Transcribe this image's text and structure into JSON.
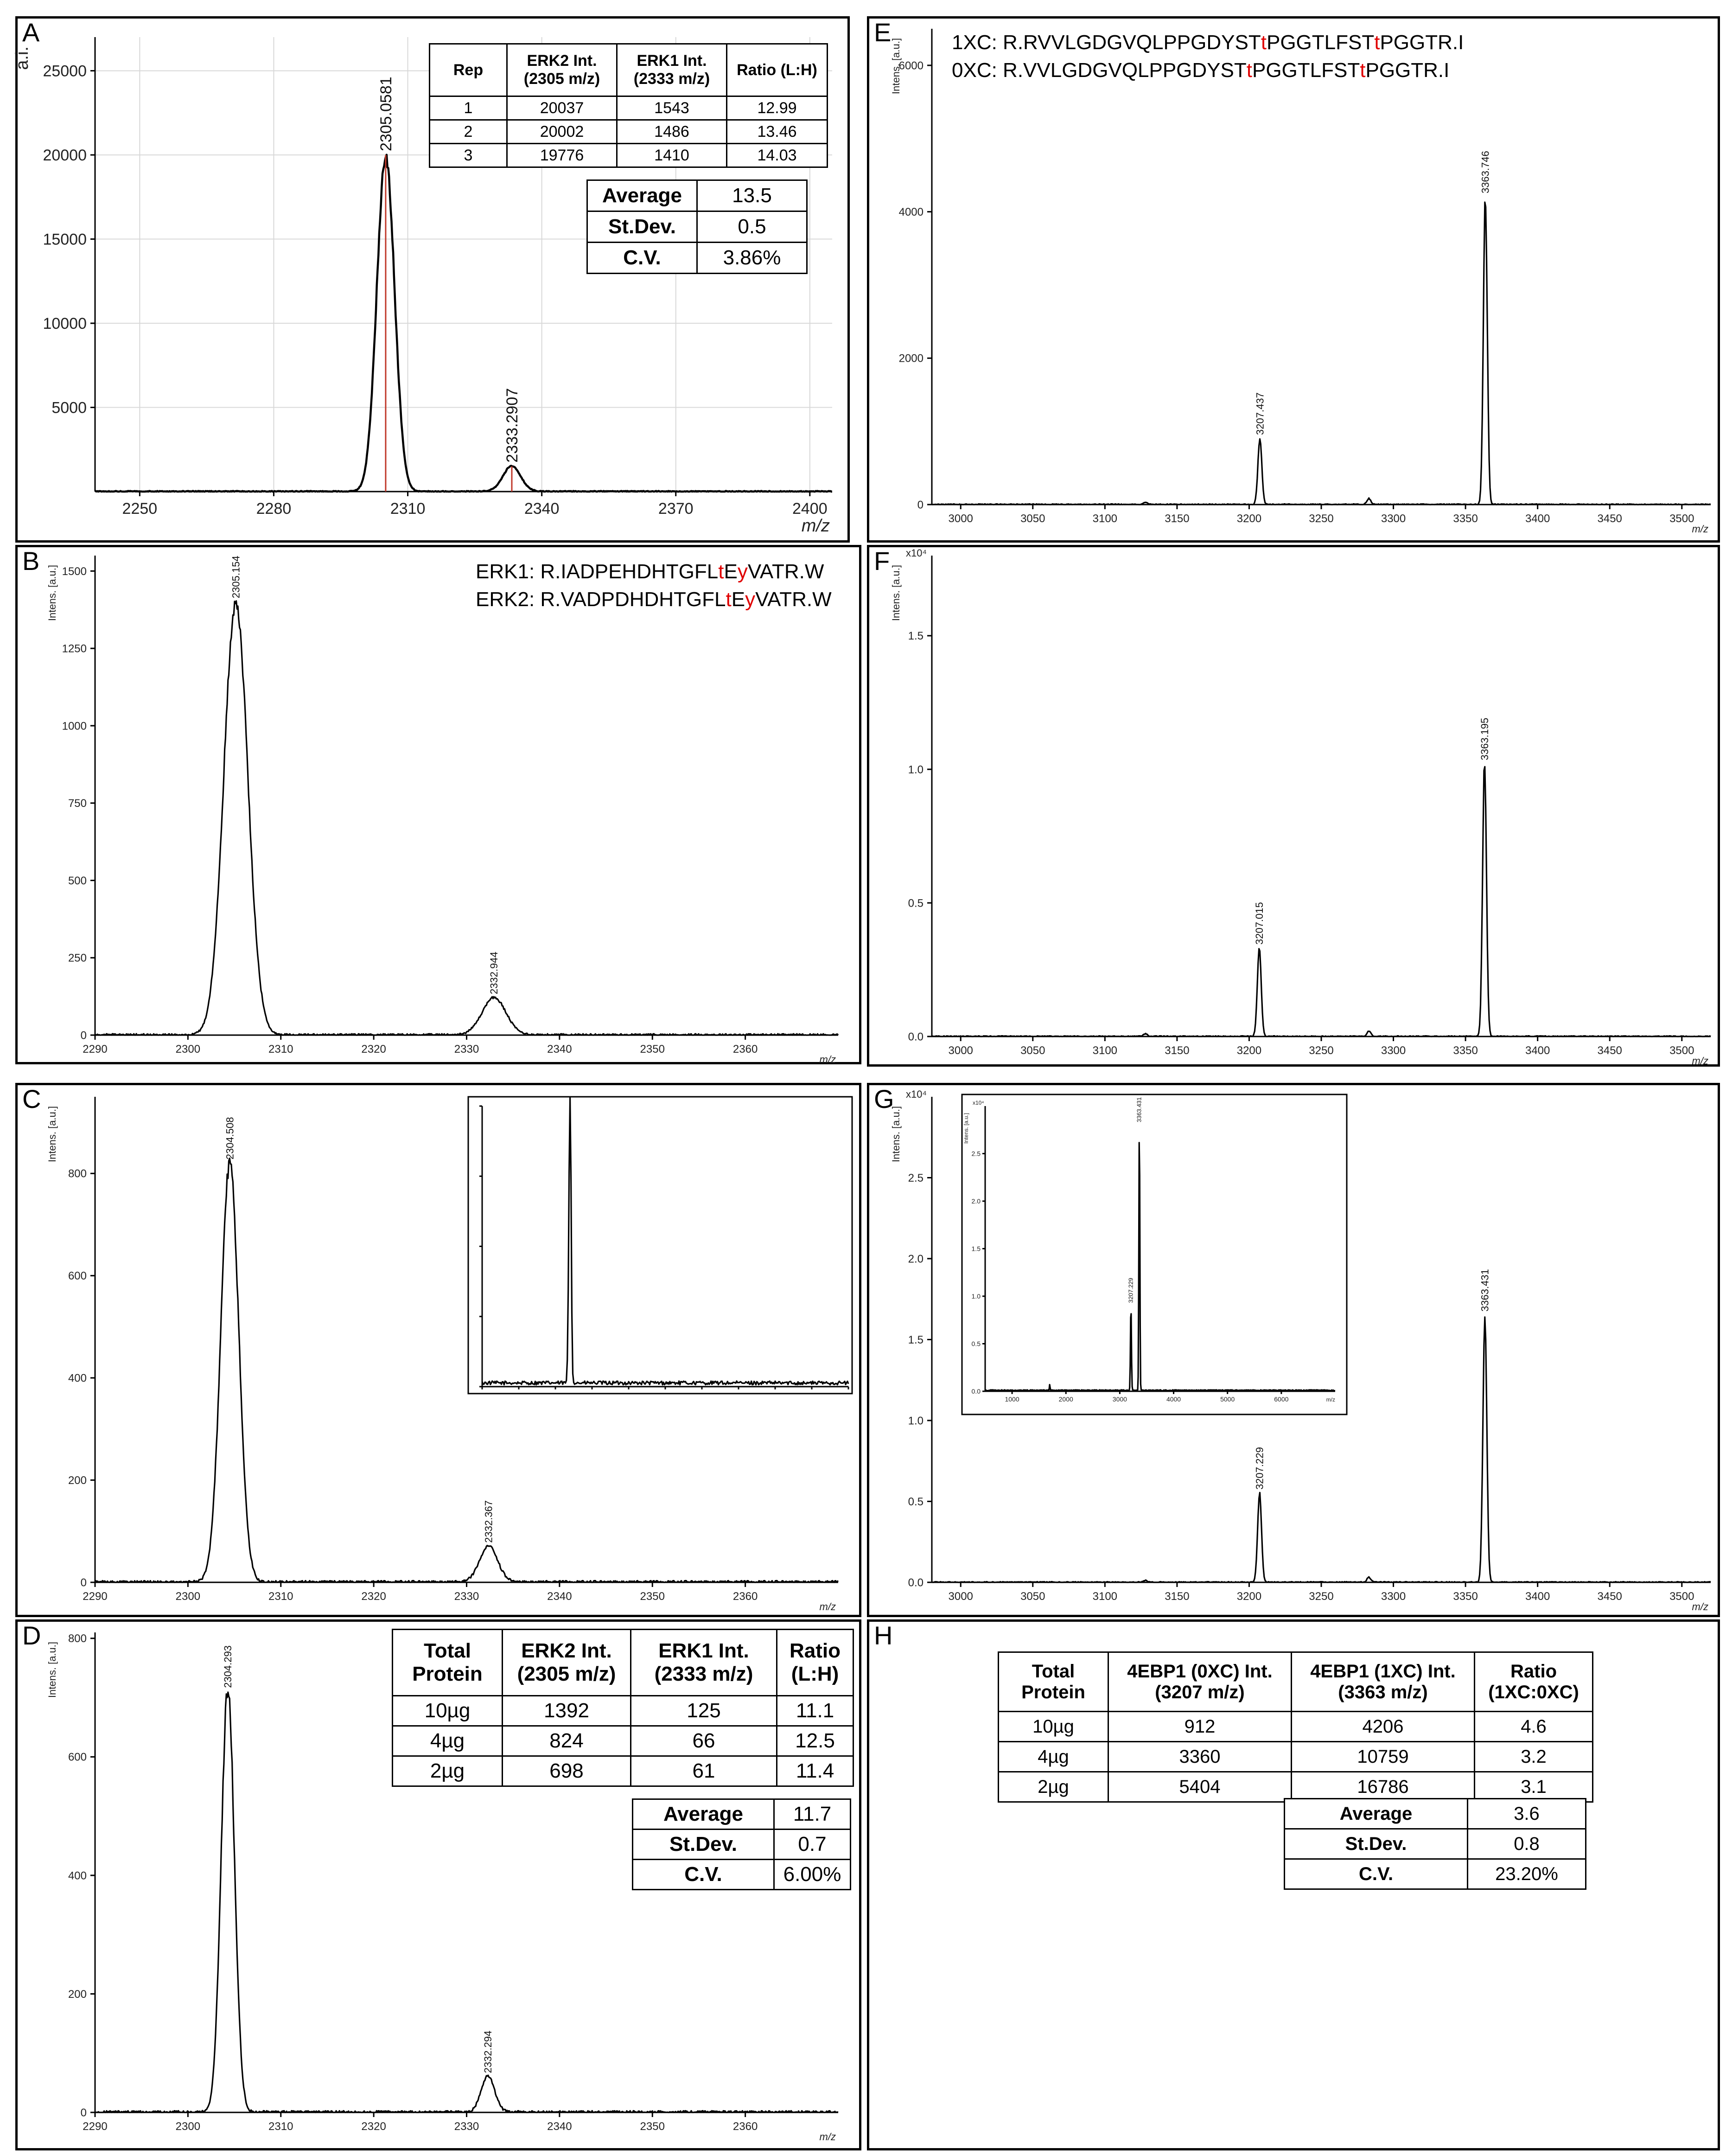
{
  "panels": {
    "A": {
      "label": "A"
    },
    "B": {
      "label": "B"
    },
    "C": {
      "label": "C"
    },
    "D": {
      "label": "D"
    },
    "E": {
      "label": "E"
    },
    "F": {
      "label": "F"
    },
    "G": {
      "label": "G"
    },
    "H": {
      "label": "H"
    }
  },
  "sequences": {
    "erk": [
      [
        {
          "t": "ERK1: R.IADPEHDHTGFL"
        },
        {
          "t": "t",
          "red": true
        },
        {
          "t": "E"
        },
        {
          "t": "y",
          "red": true
        },
        {
          "t": "VATR.W"
        }
      ],
      [
        {
          "t": "ERK2: R.VADPDHDHTGFL"
        },
        {
          "t": "t",
          "red": true
        },
        {
          "t": "E"
        },
        {
          "t": "y",
          "red": true
        },
        {
          "t": "VATR.W"
        }
      ]
    ],
    "ebp": [
      [
        {
          "t": "1XC: R.RVVLGDGVQLPPGDYST"
        },
        {
          "t": "t",
          "red": true
        },
        {
          "t": "PGGTLFST"
        },
        {
          "t": "t",
          "red": true
        },
        {
          "t": "PGGTR.I"
        }
      ],
      [
        {
          "t": "0XC: R.VVLGDGVQLPPGDYST"
        },
        {
          "t": "t",
          "red": true
        },
        {
          "t": "PGGTLFST"
        },
        {
          "t": "t",
          "red": true
        },
        {
          "t": "PGGTR.I"
        }
      ]
    ]
  },
  "tables": {
    "A": {
      "header": [
        "Rep",
        "ERK2 Int.\n(2305 m/z)",
        "ERK1 Int.\n(2333 m/z)",
        "Ratio (L:H)"
      ],
      "rows": [
        [
          "1",
          "20037",
          "1543",
          "12.99"
        ],
        [
          "2",
          "20002",
          "1486",
          "13.46"
        ],
        [
          "3",
          "19776",
          "1410",
          "14.03"
        ]
      ],
      "stats": [
        [
          "Average",
          "13.5"
        ],
        [
          "St.Dev.",
          "0.5"
        ],
        [
          "C.V.",
          "3.86%"
        ]
      ]
    },
    "D": {
      "header": [
        "Total\nProtein",
        "ERK2 Int.\n(2305 m/z)",
        "ERK1 Int.\n(2333 m/z)",
        "Ratio\n(L:H)"
      ],
      "rows": [
        [
          "10µg",
          "1392",
          "125",
          "11.1"
        ],
        [
          "4µg",
          "824",
          "66",
          "12.5"
        ],
        [
          "2µg",
          "698",
          "61",
          "11.4"
        ]
      ],
      "stats": [
        [
          "Average",
          "11.7"
        ],
        [
          "St.Dev.",
          "0.7"
        ],
        [
          "C.V.",
          "6.00%"
        ]
      ]
    },
    "H": {
      "header": [
        "Total\nProtein",
        "4EBP1 (0XC) Int.\n(3207 m/z)",
        "4EBP1 (1XC) Int.\n(3363 m/z)",
        "Ratio\n(1XC:0XC)"
      ],
      "rows": [
        [
          "10µg",
          "912",
          "4206",
          "4.6"
        ],
        [
          "4µg",
          "3360",
          "10759",
          "3.2"
        ],
        [
          "2µg",
          "5404",
          "16786",
          "3.1"
        ]
      ],
      "stats": [
        [
          "Average",
          "3.6"
        ],
        [
          "St.Dev.",
          "0.8"
        ],
        [
          "C.V.",
          "23.20%"
        ]
      ]
    }
  },
  "chart_data": [
    {
      "panel": "A",
      "type": "line",
      "ylabel": "a.i.",
      "xlabel": "m/z",
      "xlim": [
        2240,
        2405
      ],
      "ylim": [
        0,
        27000
      ],
      "xticks": [
        2250,
        2280,
        2310,
        2340,
        2370,
        2400
      ],
      "yticks": [
        5000,
        10000,
        15000,
        20000,
        25000
      ],
      "grid": true,
      "peaks": [
        {
          "x": 2305.0581,
          "y": 20000,
          "label": "2305.0581"
        },
        {
          "x": 2333.2907,
          "y": 1500,
          "label": "2333.2907"
        }
      ]
    },
    {
      "panel": "B",
      "type": "line",
      "ylabel": "Intens. [a.u.]",
      "xlabel": "m/z",
      "xlim": [
        2290,
        2370
      ],
      "ylim": [
        0,
        1550
      ],
      "xticks": [
        2290,
        2300,
        2310,
        2320,
        2330,
        2340,
        2350,
        2360
      ],
      "yticks": [
        0,
        250,
        500,
        750,
        1000,
        1250,
        1500
      ],
      "peaks": [
        {
          "x": 2305.154,
          "y": 1400,
          "label": "2305.154"
        },
        {
          "x": 2332.944,
          "y": 120,
          "label": "2332.944"
        }
      ]
    },
    {
      "panel": "C",
      "type": "line",
      "ylabel": "Intens. [a.u.]",
      "xlabel": "m/z",
      "xlim": [
        2290,
        2370
      ],
      "ylim": [
        0,
        950
      ],
      "xticks": [
        2290,
        2300,
        2310,
        2320,
        2330,
        2340,
        2350,
        2360
      ],
      "yticks": [
        0,
        200,
        400,
        600,
        800
      ],
      "peaks": [
        {
          "x": 2304.508,
          "y": 820,
          "label": "2304.508"
        },
        {
          "x": 2332.367,
          "y": 70,
          "label": "2332.367"
        }
      ]
    },
    {
      "panel": "D",
      "type": "line",
      "ylabel": "Intens. [a.u.]",
      "xlabel": "m/z",
      "xlim": [
        2290,
        2370
      ],
      "ylim": [
        0,
        810
      ],
      "xticks": [
        2290,
        2300,
        2310,
        2320,
        2330,
        2340,
        2350,
        2360
      ],
      "yticks": [
        0,
        200,
        400,
        600,
        800
      ],
      "peaks": [
        {
          "x": 2304.293,
          "y": 710,
          "label": "2304.293"
        },
        {
          "x": 2332.294,
          "y": 60,
          "label": "2332.294"
        }
      ]
    },
    {
      "panel": "E",
      "type": "line",
      "ylabel": "Intens. [a.u.]",
      "xlabel": "m/z",
      "xlim": [
        2980,
        3520
      ],
      "ylim": [
        0,
        6500
      ],
      "xticks": [
        3000,
        3050,
        3100,
        3150,
        3200,
        3250,
        3300,
        3350,
        3400,
        3450,
        3500
      ],
      "yticks": [
        0,
        2000,
        4000,
        6000
      ],
      "peaks": [
        {
          "x": 3207.437,
          "y": 900,
          "label": "3207.437"
        },
        {
          "x": 3363.746,
          "y": 4200,
          "label": "3363.746"
        }
      ]
    },
    {
      "panel": "F",
      "type": "line",
      "ylabel": "Intens. [a.u.]",
      "xlabel": "m/z",
      "yexp": "x10⁴",
      "xlim": [
        2980,
        3520
      ],
      "ylim": [
        0,
        1.8
      ],
      "xticks": [
        3000,
        3050,
        3100,
        3150,
        3200,
        3250,
        3300,
        3350,
        3400,
        3450,
        3500
      ],
      "yticks": [
        "0.0",
        "0.5",
        "1.0",
        "1.5"
      ],
      "peaks": [
        {
          "x": 3207.015,
          "y": 0.33,
          "label": "3207.015"
        },
        {
          "x": 3363.195,
          "y": 1.02,
          "label": "3363.195"
        }
      ]
    },
    {
      "panel": "G",
      "type": "line",
      "ylabel": "Intens. [a.u.]",
      "xlabel": "m/z",
      "yexp": "x10⁴",
      "xlim": [
        2980,
        3520
      ],
      "ylim": [
        0,
        3.0
      ],
      "xticks": [
        3000,
        3050,
        3100,
        3150,
        3200,
        3250,
        3300,
        3350,
        3400,
        3450,
        3500
      ],
      "yticks": [
        "0.0",
        "0.5",
        "1.0",
        "1.5",
        "2.0",
        "2.5"
      ],
      "peaks": [
        {
          "x": 3207.229,
          "y": 0.55,
          "label": "3207.229"
        },
        {
          "x": 3363.431,
          "y": 1.65,
          "label": "3363.431"
        }
      ],
      "inset": {
        "ylabel": "Intens. [a.u.]",
        "yexp": "x10⁴",
        "xlim": [
          500,
          7000
        ],
        "ylim": [
          0,
          3.0
        ],
        "xticks": [
          1000,
          2000,
          3000,
          4000,
          5000,
          6000
        ],
        "yticks": [
          "0.0",
          "0.5",
          "1.0",
          "1.5",
          "2.0",
          "2.5"
        ],
        "xlabel": "m/z",
        "peaks": [
          {
            "x": 3207.229,
            "y": 0.9,
            "label": "3207.229"
          },
          {
            "x": 3363.431,
            "y": 2.8,
            "label": "3363.431"
          }
        ]
      }
    }
  ]
}
